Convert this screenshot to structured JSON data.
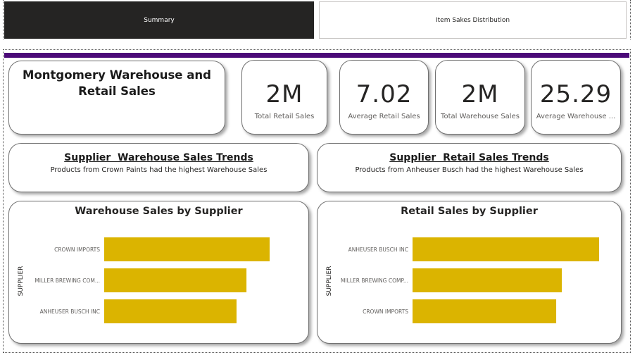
{
  "tabs": [
    {
      "label": "Summary",
      "active": true
    },
    {
      "label": "Item Sakes Distribution",
      "active": false
    }
  ],
  "colors": {
    "accent_bar": "#4b0a78",
    "bar": "#dbb400",
    "tab_active_bg": "#252423"
  },
  "title_card": {
    "title": "Montgomery Warehouse and Retail Sales"
  },
  "kpis": [
    {
      "value": "2M",
      "label": "Total Retail Sales"
    },
    {
      "value": "7.02",
      "label": "Average Retail Sales"
    },
    {
      "value": "2M",
      "label": "Total Warehouse Sales"
    },
    {
      "value": "25.29",
      "label": "Average Warehouse ..."
    }
  ],
  "trends": {
    "warehouse": {
      "title": "Supplier  Warehouse Sales Trends",
      "text": "Products from Crown Paints had the highest Warehouse Sales"
    },
    "retail": {
      "title": "Supplier  Retail Sales Trends",
      "text": "Products from Anheuser Busch had the highest Warehouse Sales"
    }
  },
  "chart_data": [
    {
      "type": "bar",
      "orientation": "horizontal",
      "title": "Warehouse Sales by Supplier",
      "ylabel": "SUPPLIER",
      "categories": [
        "CROWN IMPORTS",
        "MILLER BREWING COM...",
        "ANHEUSER BUSCH INC"
      ],
      "values": [
        1.0,
        0.86,
        0.8
      ],
      "grid": false
    },
    {
      "type": "bar",
      "orientation": "horizontal",
      "title": "Retail Sales by Supplier",
      "ylabel": "SUPPLIER",
      "categories": [
        "ANHEUSER BUSCH INC",
        "MILLER BREWING COMP...",
        "CROWN IMPORTS"
      ],
      "values": [
        1.0,
        0.8,
        0.77
      ],
      "grid": false
    }
  ]
}
